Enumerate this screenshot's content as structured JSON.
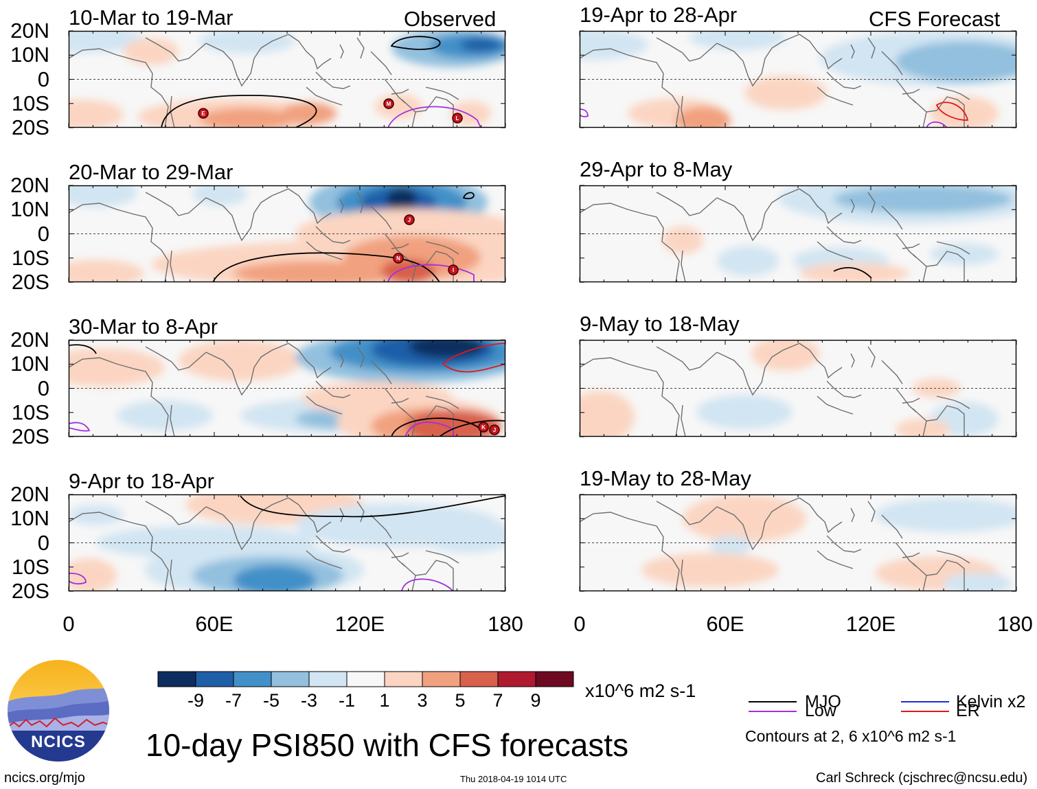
{
  "figure": {
    "main_title": "10-day PSI850 with CFS forecasts",
    "columns": {
      "left": "Observed",
      "right": "CFS Forecast"
    },
    "observed_panels": [
      "10-Mar to 19-Mar",
      "20-Mar to 29-Mar",
      "30-Mar to 8-Apr",
      "9-Apr to 18-Apr"
    ],
    "forecast_panels": [
      "19-Apr to 28-Apr",
      "29-Apr to 8-May",
      "9-May to 18-May",
      "19-May to 28-May"
    ],
    "lat_labels": [
      "20N",
      "10N",
      "0",
      "10S",
      "20S"
    ],
    "lon_labels": [
      "0",
      "60E",
      "120E",
      "180"
    ]
  },
  "colorbar": {
    "labels": [
      "-9",
      "-7",
      "-5",
      "-3",
      "-1",
      "1",
      "3",
      "5",
      "7",
      "9"
    ],
    "colors": [
      "#0c2d5e",
      "#1f5fa8",
      "#4290c8",
      "#92c0de",
      "#d2e5f2",
      "#f7f7f7",
      "#fbd5c2",
      "#f1a17f",
      "#d9604c",
      "#b01a2e",
      "#6d0a22"
    ],
    "units": "x10^6 m2 s-1"
  },
  "legend": {
    "items": [
      {
        "label": "MJO",
        "color": "#000000"
      },
      {
        "label": "Kelvin x2",
        "color": "#1d2bd8"
      },
      {
        "label": "Low",
        "color": "#a12fe0"
      },
      {
        "label": "ER",
        "color": "#e01818"
      }
    ],
    "note": "Contours at 2, 6 x10^6 m2 s-1"
  },
  "footer": {
    "site": "ncics.org/mjo",
    "timestamp": "Thu 2018-04-19 1014 UTC",
    "credit": "Carl Schreck (cjschrec@ncsu.edu)"
  },
  "logo": {
    "text": "NCICS"
  },
  "storm_markers": {
    "panel1": [
      "E",
      "M",
      "L"
    ],
    "panel2": [
      "J",
      "N",
      "I"
    ],
    "panel3": [
      "K",
      "J"
    ]
  }
}
